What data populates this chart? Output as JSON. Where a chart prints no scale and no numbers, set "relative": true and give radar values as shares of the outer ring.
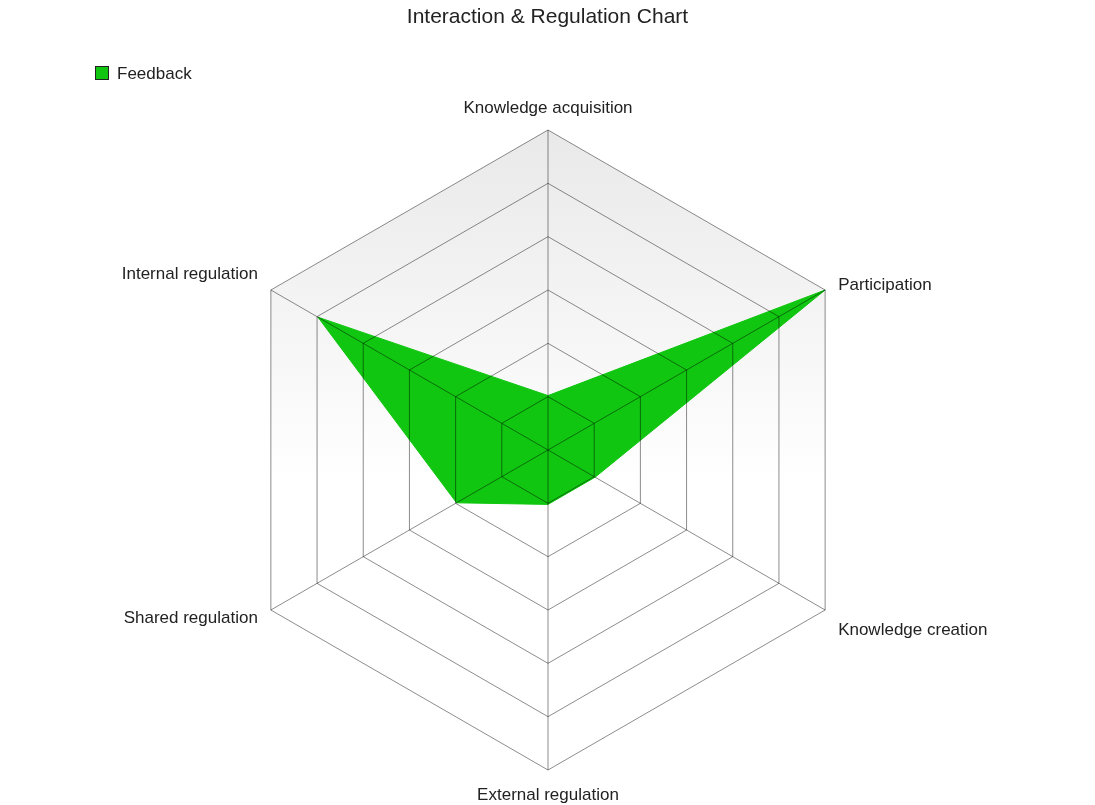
{
  "chart_data": {
    "type": "radar",
    "title": "Interaction & Regulation Chart",
    "categories": [
      "Knowledge acquisition",
      "Participation",
      "Knowledge creation",
      "External regulation",
      "Shared regulation",
      "Internal regulation"
    ],
    "series": [
      {
        "name": "Feedback",
        "color": "#10c610",
        "values": [
          0.17,
          1,
          0.17,
          0.17,
          0.33,
          0.83
        ]
      }
    ],
    "relative": true,
    "grid": true,
    "legend": "top left"
  }
}
